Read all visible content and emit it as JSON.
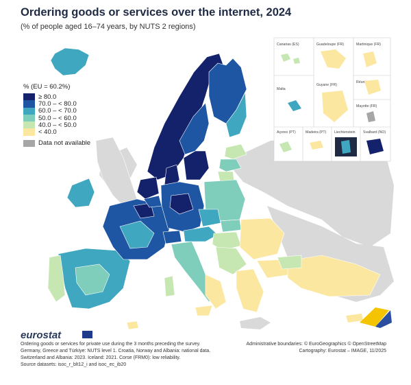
{
  "title": "Ordering goods or services over the internet, 2024",
  "subtitle": "(% of people aged 16–74 years, by NUTS 2 regions)",
  "legend": {
    "title": "% (EU = 60.2%)",
    "classes": [
      {
        "label": "≥ 80.0",
        "color": "#14216b"
      },
      {
        "label": "70.0 – < 80.0",
        "color": "#1e56a4"
      },
      {
        "label": "60.0 – < 70.0",
        "color": "#3fa7bf"
      },
      {
        "label": "50.0 – < 60.0",
        "color": "#7fcdbb"
      },
      {
        "label": "40.0 – < 50.0",
        "color": "#c7e7b2"
      },
      {
        "label": "< 40.0",
        "color": "#fbe7a0"
      }
    ],
    "not_available": {
      "label": "Data not available",
      "color": "#a6a6a6"
    }
  },
  "insets": [
    {
      "name": "Canarias (ES)",
      "scale": "0 100"
    },
    {
      "name": "Guadeloupe (FR)",
      "scale": "0 25"
    },
    {
      "name": "Martinique (FR)",
      "scale": "0 20"
    },
    {
      "name": "Réunion (FR)",
      "scale": "0 20"
    },
    {
      "name": "Malta",
      "scale": "0 10"
    },
    {
      "name": "Guyane (FR)",
      "scale": "0 100"
    },
    {
      "name": "Mayotte (FR)",
      "scale": "0 15"
    },
    {
      "name": "Açores (PT)",
      "scale": "0 50"
    },
    {
      "name": "Madeira (PT)",
      "scale": "0 20"
    },
    {
      "name": "Liechtenstein",
      "scale": "0 5"
    },
    {
      "name": "Svalbard (NO)",
      "scale": "0 100"
    }
  ],
  "brand": "eurostat",
  "footnote": "Ordering goods or services for private use during the 3 months preceding the survey. Germany, Greece and Türkiye: NUTS level 1. Croatia, Norway and Albania: national data. Switzerland and Albania: 2023. Iceland: 2021. Corse (FRM0): low reliability.",
  "sources": "Source datasets: isoc_r_blt12_i and isoc_ec_ib20",
  "credits": {
    "boundaries": "Administrative boundaries: © EuroGeographics © OpenStreetMap",
    "cartography": "Cartography: Eurostat – IMAGE, 11/2025"
  },
  "colors": {
    "sea": "#ffffff",
    "non_eu_land": "#d9d9d9",
    "border": "#ffffff"
  }
}
